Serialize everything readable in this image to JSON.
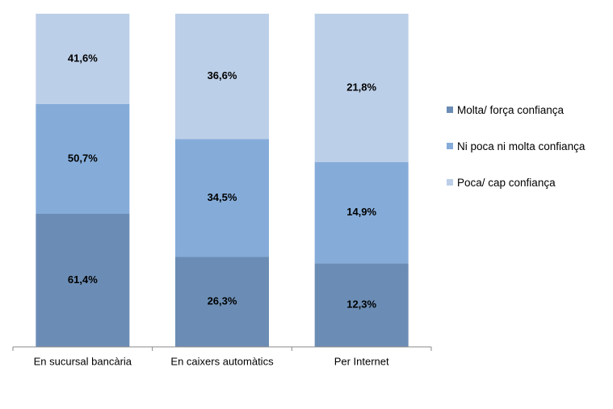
{
  "chart_data": {
    "type": "bar",
    "stacked": "percent",
    "categories": [
      "En sucursal bancària",
      "En caixers automàtics",
      "Per Internet"
    ],
    "series": [
      {
        "name": "Molta/ força confiança",
        "color": "#6b8db5",
        "values": [
          61.4,
          26.3,
          12.3
        ],
        "value_labels": [
          "61,4%",
          "26,3%",
          "12,3%"
        ]
      },
      {
        "name": "Ni poca ni molta confiança",
        "color": "#85acd9",
        "values": [
          50.7,
          34.5,
          14.9
        ],
        "value_labels": [
          "50,7%",
          "34,5%",
          "14,9%"
        ]
      },
      {
        "name": "Poca/ cap confiança",
        "color": "#bccfe8",
        "values": [
          41.6,
          36.6,
          21.8
        ],
        "value_labels": [
          "41,6%",
          "36,6%",
          "21,8%"
        ]
      }
    ],
    "legend": "right"
  }
}
